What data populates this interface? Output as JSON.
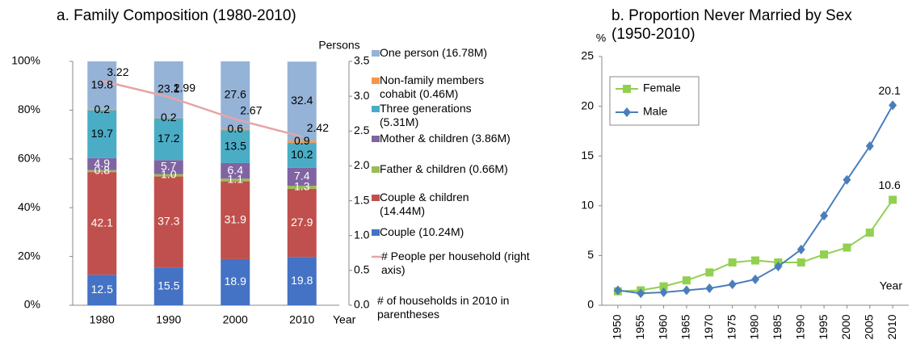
{
  "chart_data": [
    {
      "type": "stacked_bar",
      "title": "a. Family Composition (1980-2010)",
      "categories": [
        "1980",
        "1990",
        "2000",
        "2010"
      ],
      "series": [
        {
          "name": "Couple (10.24M)",
          "color": "#4472c4",
          "label_color": "#ffffff",
          "values": [
            12.5,
            15.5,
            18.9,
            19.8
          ]
        },
        {
          "name": "Couple & children (14.44M)",
          "color": "#c0504d",
          "label_color": "#ffffff",
          "values": [
            42.1,
            37.3,
            31.9,
            27.9
          ]
        },
        {
          "name": "Father & children (0.66M)",
          "color": "#9bbb59",
          "label_color": "#ffffff",
          "values": [
            0.8,
            1.0,
            1.1,
            1.3
          ],
          "value_labels": [
            "0.8",
            "1.0",
            "1.1",
            "1.3"
          ]
        },
        {
          "name": "Mother & children (3.86M)",
          "color": "#8064a2",
          "label_color": "#ffffff",
          "values": [
            4.9,
            5.7,
            6.4,
            7.4
          ]
        },
        {
          "name": "Three generations (5.31M)",
          "color": "#4bacc6",
          "label_color": "#000000",
          "values": [
            19.7,
            17.2,
            13.5,
            10.2
          ]
        },
        {
          "name": "Non-family members cohabit (0.46M)",
          "color": "#f79646",
          "label_color": "#000000",
          "values": [
            0.2,
            0.2,
            0.6,
            0.9
          ]
        },
        {
          "name": "One person (16.78M)",
          "color": "#95b3d7",
          "label_color": "#000000",
          "values": [
            19.8,
            23.1,
            27.6,
            32.4
          ]
        },
        {
          "name": "# People per household (right axis)",
          "color": "#e6a5a5",
          "type": "line",
          "axis": "y2",
          "values": [
            3.22,
            2.99,
            2.67,
            2.42
          ]
        }
      ],
      "ylim": [
        0,
        100
      ],
      "yticks": [
        {
          "value": 0,
          "label": "0%"
        },
        {
          "value": 20,
          "label": "20%"
        },
        {
          "value": 40,
          "label": "40%"
        },
        {
          "value": 60,
          "label": "60%"
        },
        {
          "value": 80,
          "label": "80%"
        },
        {
          "value": 100,
          "label": "100%"
        }
      ],
      "y2lim": [
        0,
        3.5
      ],
      "y2ticks": [
        {
          "value": 0,
          "label": "0.0"
        },
        {
          "value": 0.5,
          "label": "0.5"
        },
        {
          "value": 1,
          "label": "1.0"
        },
        {
          "value": 1.5,
          "label": "1.5"
        },
        {
          "value": 2,
          "label": "2.0"
        },
        {
          "value": 2.5,
          "label": "2.5"
        },
        {
          "value": 3,
          "label": "3.0"
        },
        {
          "value": 3.5,
          "label": "3.5"
        }
      ],
      "y2_label": "Persons",
      "x_label": "Year",
      "note": "# of households in 2010 in parentheses"
    },
    {
      "type": "line",
      "title": "b. Proportion Never Married by Sex (1950-2010)",
      "x": [
        1950,
        1955,
        1960,
        1965,
        1970,
        1975,
        1980,
        1985,
        1990,
        1995,
        2000,
        2005,
        2010
      ],
      "series": [
        {
          "name": "Female",
          "color": "#92d050",
          "marker": "square",
          "values": [
            1.4,
            1.5,
            1.9,
            2.5,
            3.3,
            4.3,
            4.5,
            4.3,
            4.3,
            5.1,
            5.8,
            7.3,
            10.6
          ]
        },
        {
          "name": "Male",
          "color": "#4a7ebb",
          "marker": "diamond",
          "values": [
            1.5,
            1.2,
            1.3,
            1.5,
            1.7,
            2.1,
            2.6,
            3.9,
            5.6,
            9.0,
            12.6,
            16.0,
            20.1
          ]
        }
      ],
      "xlim": [
        1946.5,
        2013.5
      ],
      "xticks": [
        1950,
        1955,
        1960,
        1965,
        1970,
        1975,
        1980,
        1985,
        1990,
        1995,
        2000,
        2005,
        2010
      ],
      "ylim": [
        0,
        25
      ],
      "yticks": [
        0,
        5,
        10,
        15,
        20,
        25
      ],
      "y_label": "%",
      "x_label": "Year",
      "legend": "upper left",
      "label_last": true
    }
  ]
}
